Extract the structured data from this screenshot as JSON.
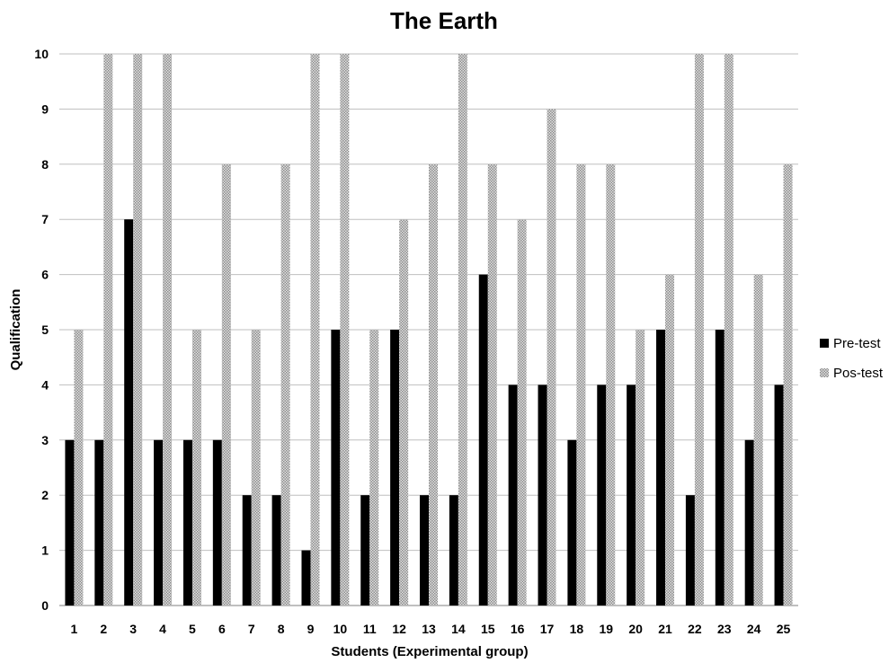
{
  "chart_data": {
    "type": "bar",
    "title": "The Earth",
    "xlabel": "Students (Experimental group)",
    "ylabel": "Qualification",
    "ylim": [
      0,
      10
    ],
    "yticks": [
      0,
      1,
      2,
      3,
      4,
      5,
      6,
      7,
      8,
      9,
      10
    ],
    "grid": true,
    "legend_position": "right",
    "categories": [
      "1",
      "2",
      "3",
      "4",
      "5",
      "6",
      "7",
      "8",
      "9",
      "10",
      "11",
      "12",
      "13",
      "14",
      "15",
      "16",
      "17",
      "18",
      "19",
      "20",
      "21",
      "22",
      "23",
      "24",
      "25"
    ],
    "series": [
      {
        "name": "Pre-test",
        "color": "#000000",
        "pattern": "solid",
        "values": [
          3,
          3,
          7,
          3,
          3,
          3,
          2,
          2,
          1,
          5,
          2,
          5,
          2,
          2,
          6,
          4,
          4,
          3,
          4,
          4,
          5,
          2,
          5,
          3,
          4
        ]
      },
      {
        "name": "Pos-test",
        "color": "#a6a6a6",
        "pattern": "dotted",
        "values": [
          5,
          10,
          10,
          10,
          5,
          8,
          5,
          8,
          10,
          10,
          5,
          7,
          8,
          10,
          8,
          7,
          9,
          8,
          8,
          5,
          6,
          10,
          10,
          6,
          8
        ]
      }
    ]
  }
}
